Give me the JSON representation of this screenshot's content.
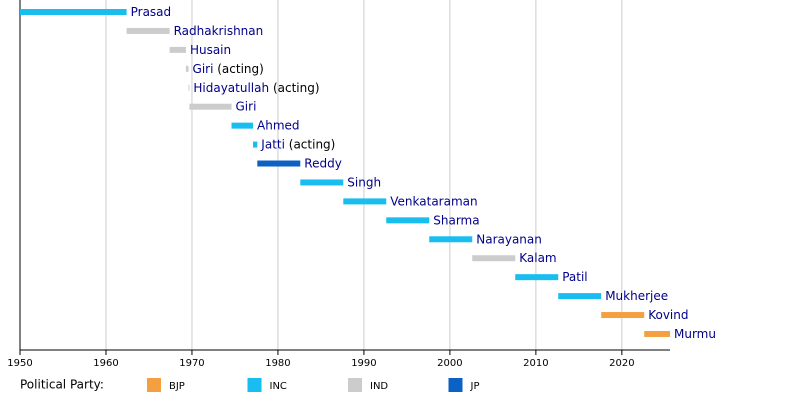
{
  "chart_data": {
    "type": "timeline",
    "xlim": [
      1950,
      2025.6
    ],
    "xticks": [
      1950,
      1960,
      1970,
      1980,
      1990,
      2000,
      2010,
      2020
    ],
    "grid": true,
    "legend_title": "Political Party:",
    "parties": [
      {
        "name": "BJP",
        "color": "#f4a040"
      },
      {
        "name": "INC",
        "color": "#19bdf0"
      },
      {
        "name": "IND",
        "color": "#cccccc"
      },
      {
        "name": "JP",
        "color": "#0b62c4"
      }
    ],
    "bars": [
      {
        "name": "Prasad",
        "party": "INC",
        "start": 1950,
        "end": 1962.4
      },
      {
        "name": "Radhakrishnan",
        "party": "IND",
        "start": 1962.4,
        "end": 1967.4
      },
      {
        "name": "Husain",
        "party": "IND",
        "start": 1967.4,
        "end": 1969.3
      },
      {
        "name": "Giri",
        "note": "(acting)",
        "party": "IND",
        "start": 1969.3,
        "end": 1969.6
      },
      {
        "name": "Hidayatullah",
        "note": "(acting)",
        "party": "IND",
        "start": 1969.6,
        "end": 1969.7
      },
      {
        "name": "Giri",
        "party": "IND",
        "start": 1969.7,
        "end": 1974.6
      },
      {
        "name": "Ahmed",
        "party": "INC",
        "start": 1974.6,
        "end": 1977.1
      },
      {
        "name": "Jatti",
        "note": "(acting)",
        "party": "INC",
        "start": 1977.1,
        "end": 1977.6
      },
      {
        "name": "Reddy",
        "party": "JP",
        "start": 1977.6,
        "end": 1982.6
      },
      {
        "name": "Singh",
        "party": "INC",
        "start": 1982.6,
        "end": 1987.6
      },
      {
        "name": "Venkataraman",
        "party": "INC",
        "start": 1987.6,
        "end": 1992.6
      },
      {
        "name": "Sharma",
        "party": "INC",
        "start": 1992.6,
        "end": 1997.6
      },
      {
        "name": "Narayanan",
        "party": "INC",
        "start": 1997.6,
        "end": 2002.6
      },
      {
        "name": "Kalam",
        "party": "IND",
        "start": 2002.6,
        "end": 2007.6
      },
      {
        "name": "Patil",
        "party": "INC",
        "start": 2007.6,
        "end": 2012.6
      },
      {
        "name": "Mukherjee",
        "party": "INC",
        "start": 2012.6,
        "end": 2017.6
      },
      {
        "name": "Kovind",
        "party": "BJP",
        "start": 2017.6,
        "end": 2022.6
      },
      {
        "name": "Murmu",
        "party": "BJP",
        "start": 2022.6,
        "end": 2025.6
      }
    ]
  }
}
